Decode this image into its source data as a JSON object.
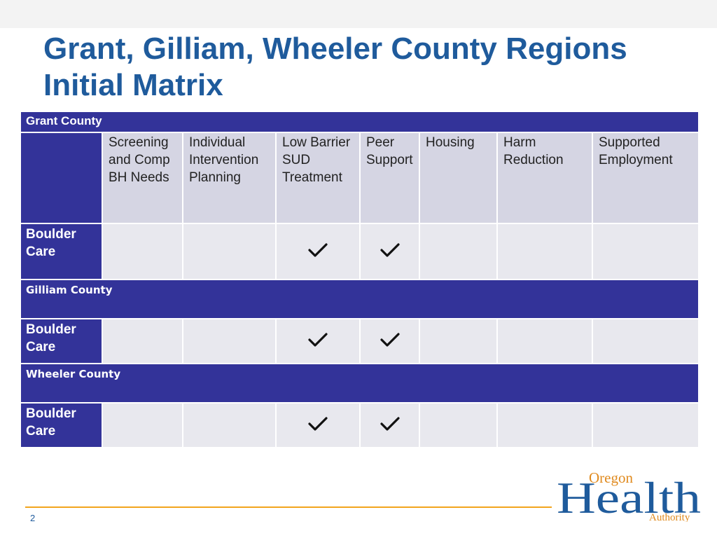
{
  "slide": {
    "title_line1": "Grant, Gilliam, Wheeler County Regions",
    "title_line2": "Initial Matrix",
    "page_number": "2"
  },
  "columns": [
    "Screening and Comp BH Needs",
    "Individual Intervention Planning",
    "Low Barrier SUD Treatment",
    "Peer Support",
    "Housing",
    "Harm Reduction",
    "Supported Employment"
  ],
  "sections": [
    {
      "county": "Grant County",
      "provider": "Boulder Care",
      "checks": [
        false,
        false,
        true,
        true,
        false,
        false,
        false
      ]
    },
    {
      "county": "Gilliam County",
      "provider": "Boulder Care",
      "checks": [
        false,
        false,
        true,
        true,
        false,
        false,
        false
      ]
    },
    {
      "county": "Wheeler County",
      "provider": "Boulder Care",
      "checks": [
        false,
        false,
        true,
        true,
        false,
        false,
        false
      ]
    }
  ],
  "logo": {
    "top_word": "Oregon",
    "main_word": "Health",
    "bottom_word": "Authority"
  },
  "colors": {
    "title": "#1f5b9c",
    "band": "#333399",
    "header_cell": "#d5d5e3",
    "data_cell": "#e8e8ee",
    "accent_line": "#f2a51e"
  }
}
